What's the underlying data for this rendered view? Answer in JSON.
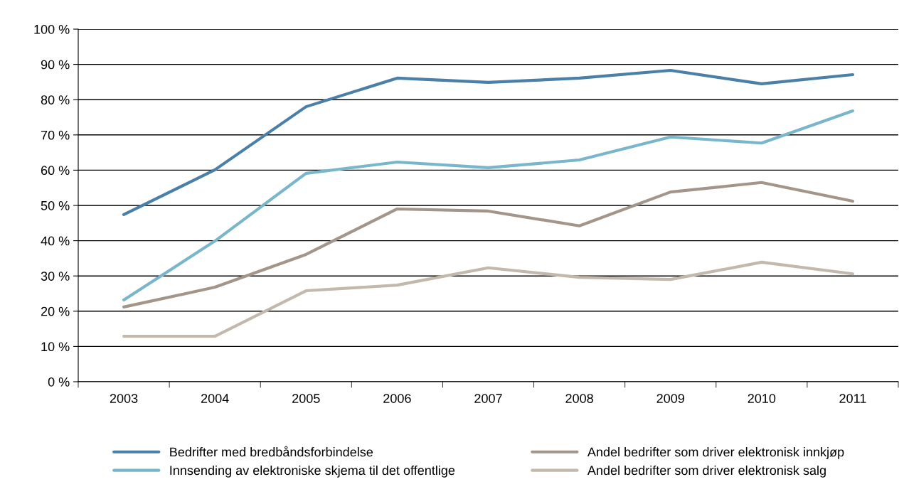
{
  "chart_data": {
    "type": "line",
    "categories": [
      "2003",
      "2004",
      "2005",
      "2006",
      "2007",
      "2008",
      "2009",
      "2010",
      "2011"
    ],
    "series": [
      {
        "name": "Bedrifter med bredbåndsforbindelse",
        "color": "#4a7fa8",
        "values": [
          47.4,
          60.1,
          78.0,
          86.1,
          84.9,
          86.1,
          88.3,
          84.5,
          87.1
        ]
      },
      {
        "name": "Innsending av elektroniske skjema til det offentlige",
        "color": "#79b6cc",
        "values": [
          23.2,
          39.9,
          59.1,
          62.3,
          60.7,
          62.9,
          69.4,
          67.7,
          76.8
        ]
      },
      {
        "name": "Andel bedrifter som driver elektronisk innkjøp",
        "color": "#a3958a",
        "values": [
          21.2,
          26.8,
          36.1,
          49.0,
          48.4,
          44.2,
          53.8,
          56.5,
          51.2
        ]
      },
      {
        "name": "Andel bedrifter som driver elektronisk salg",
        "color": "#c3b8ac",
        "values": [
          12.9,
          12.9,
          25.8,
          27.4,
          32.3,
          29.6,
          29.0,
          33.9,
          30.6
        ]
      }
    ],
    "ylim": [
      0,
      100
    ],
    "yticks": [
      {
        "value": 0,
        "label": "0 %"
      },
      {
        "value": 10,
        "label": "10 %"
      },
      {
        "value": 20,
        "label": "20 %"
      },
      {
        "value": 30,
        "label": "30 %"
      },
      {
        "value": 40,
        "label": "40 %"
      },
      {
        "value": 50,
        "label": "50 %"
      },
      {
        "value": 60,
        "label": "60 %"
      },
      {
        "value": 70,
        "label": "70 %"
      },
      {
        "value": 80,
        "label": "80 %"
      },
      {
        "value": 90,
        "label": "90 %"
      },
      {
        "value": 100,
        "label": "100 %"
      }
    ],
    "grid": "y",
    "legend": "bottom",
    "marker": "none",
    "line_style": "solid"
  }
}
